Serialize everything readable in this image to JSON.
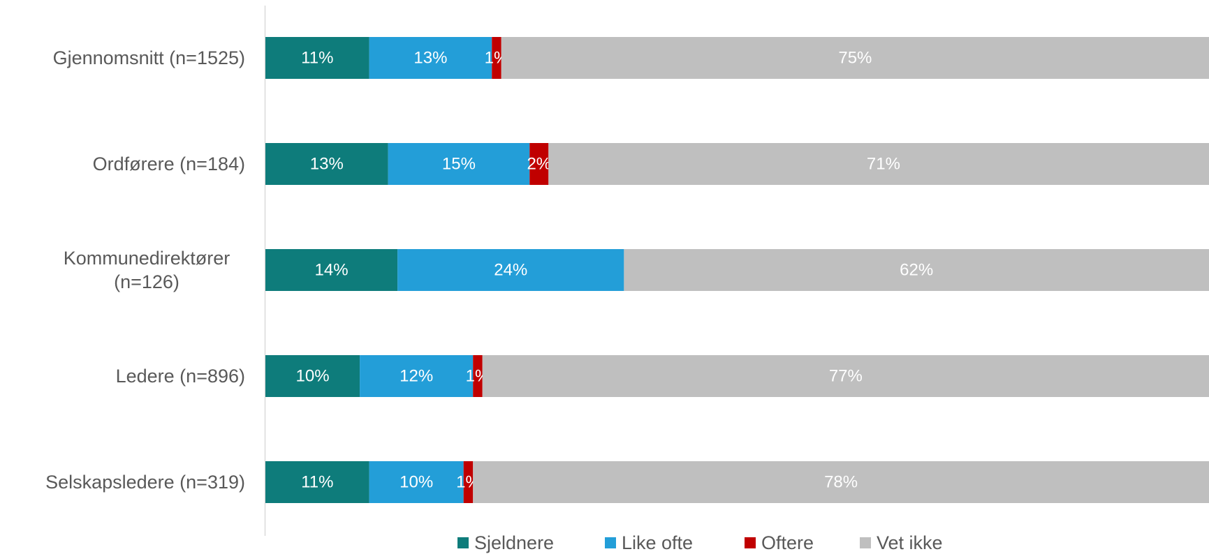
{
  "chart_data": {
    "type": "bar",
    "orientation": "horizontal",
    "stacked": true,
    "percent_stacked": true,
    "categories": [
      "Gjennomsnitt (n=1525)",
      "Ordførere (n=184)",
      "Kommunedirektører (n=126)",
      "Ledere (n=896)",
      "Selskapsledere (n=319)"
    ],
    "series": [
      {
        "name": "Sjeldnere",
        "color": "#0E7C7B",
        "values": [
          11,
          13,
          14,
          10,
          11
        ],
        "labels": [
          "11%",
          "13%",
          "14%",
          "10%",
          "11%"
        ]
      },
      {
        "name": "Like ofte",
        "color": "#239ED8",
        "values": [
          13,
          15,
          24,
          12,
          10
        ],
        "labels": [
          "13%",
          "15%",
          "24%",
          "12%",
          "10%"
        ]
      },
      {
        "name": "Oftere",
        "color": "#C00000",
        "values": [
          1,
          2,
          0,
          1,
          1
        ],
        "labels": [
          "1%",
          "2%",
          "",
          "1%",
          "1%"
        ]
      },
      {
        "name": "Vet ikke",
        "color": "#BFBFBF",
        "values": [
          75,
          71,
          62,
          77,
          78
        ],
        "labels": [
          "75%",
          "71%",
          "62%",
          "77%",
          "78%"
        ]
      }
    ],
    "xlim": [
      0,
      100
    ],
    "grid": false,
    "legend": "bottom"
  }
}
